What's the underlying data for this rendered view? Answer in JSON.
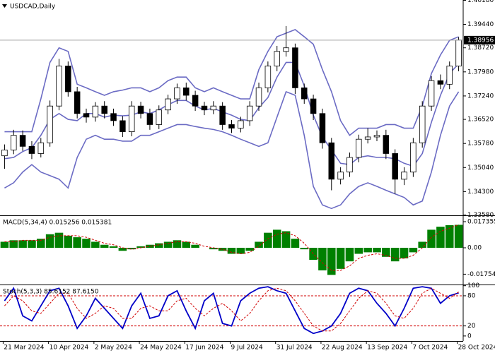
{
  "chart_data": [
    {
      "type": "candlestick",
      "title": "USDCAD,Daily",
      "categories": [
        "21 Mar 2024",
        null,
        null,
        null,
        null,
        "10 Apr 2024",
        null,
        null,
        null,
        null,
        "2 May 2024",
        null,
        null,
        null,
        null,
        "24 May 2024",
        null,
        null,
        null,
        null,
        "17 Jun 2024",
        null,
        null,
        null,
        null,
        "9 Jul 2024",
        null,
        null,
        null,
        null,
        "31 Jul 2024",
        null,
        null,
        null,
        null,
        "22 Aug 2024",
        null,
        null,
        null,
        null,
        "13 Sep 2024",
        null,
        null,
        null,
        null,
        "7 Oct 2024",
        null,
        null,
        null,
        null,
        "28 Oct 2024"
      ],
      "open": [
        1.354,
        1.3558,
        1.3603,
        1.3569,
        1.3547,
        1.358,
        1.3693,
        1.3816,
        1.3737,
        1.367,
        1.3659,
        1.3693,
        1.367,
        1.3648,
        1.3614,
        1.3693,
        1.367,
        1.3636,
        1.3681,
        1.3715,
        1.3749,
        1.3726,
        1.3693,
        1.3681,
        1.3693,
        1.3636,
        1.3625,
        1.3648,
        1.3693,
        1.3749,
        1.3816,
        1.3861,
        1.3872,
        1.3749,
        1.3715,
        1.367,
        1.358,
        1.3468,
        1.349,
        1.3535,
        1.3591,
        1.3598,
        1.3603,
        1.3547,
        1.3468,
        1.349,
        1.358,
        1.3693,
        1.3771,
        1.376,
        1.3816
      ],
      "high": [
        1.3575,
        1.362,
        1.3618,
        1.3585,
        1.3595,
        1.371,
        1.3838,
        1.383,
        1.3752,
        1.3685,
        1.3705,
        1.3708,
        1.3685,
        1.3662,
        1.3708,
        1.3706,
        1.3685,
        1.3695,
        1.3728,
        1.3762,
        1.3765,
        1.374,
        1.3706,
        1.3708,
        1.3705,
        1.365,
        1.366,
        1.3708,
        1.3765,
        1.383,
        1.3878,
        1.3939,
        1.3885,
        1.3762,
        1.3728,
        1.3685,
        1.3595,
        1.3505,
        1.355,
        1.3605,
        1.3625,
        1.3618,
        1.362,
        1.356,
        1.3505,
        1.3595,
        1.3708,
        1.3785,
        1.379,
        1.383,
        1.3905
      ],
      "low": [
        1.35,
        1.3545,
        1.3555,
        1.353,
        1.3535,
        1.3568,
        1.368,
        1.3722,
        1.3655,
        1.3642,
        1.3645,
        1.3655,
        1.3632,
        1.3598,
        1.36,
        1.3655,
        1.362,
        1.3622,
        1.3668,
        1.37,
        1.371,
        1.3678,
        1.3665,
        1.3668,
        1.362,
        1.361,
        1.3612,
        1.3632,
        1.3678,
        1.3735,
        1.38,
        1.3845,
        1.373,
        1.37,
        1.365,
        1.3562,
        1.3434,
        1.3452,
        1.3475,
        1.352,
        1.3578,
        1.3585,
        1.353,
        1.3423,
        1.345,
        1.3475,
        1.3565,
        1.3678,
        1.3745,
        1.3745,
        1.38
      ],
      "close": [
        1.3558,
        1.3603,
        1.3569,
        1.3547,
        1.358,
        1.3693,
        1.3816,
        1.3737,
        1.367,
        1.3659,
        1.3693,
        1.367,
        1.3648,
        1.3614,
        1.3693,
        1.367,
        1.3636,
        1.3681,
        1.3715,
        1.3749,
        1.3726,
        1.3693,
        1.3681,
        1.3693,
        1.3636,
        1.3625,
        1.3648,
        1.3693,
        1.3749,
        1.3816,
        1.3861,
        1.3872,
        1.3749,
        1.3715,
        1.367,
        1.358,
        1.3468,
        1.349,
        1.3535,
        1.3591,
        1.3598,
        1.3603,
        1.3547,
        1.3468,
        1.349,
        1.358,
        1.3693,
        1.3771,
        1.376,
        1.3816,
        1.3896
      ],
      "bands": {
        "color": "#6b6bc4",
        "upper": [
          1.3614,
          1.3614,
          1.3614,
          1.3614,
          1.3715,
          1.3827,
          1.3872,
          1.3861,
          1.376,
          1.3749,
          1.3737,
          1.3726,
          1.3737,
          1.3742,
          1.3749,
          1.3749,
          1.3737,
          1.3749,
          1.3771,
          1.3782,
          1.3782,
          1.3749,
          1.3737,
          1.3749,
          1.3737,
          1.3726,
          1.3715,
          1.3715,
          1.3805,
          1.3861,
          1.3906,
          1.3917,
          1.3928,
          1.3906,
          1.3883,
          1.3805,
          1.3737,
          1.3648,
          1.3603,
          1.3625,
          1.3625,
          1.3625,
          1.3636,
          1.3636,
          1.3625,
          1.3625,
          1.3693,
          1.3793,
          1.385,
          1.3895,
          1.3906
        ],
        "middle": [
          1.3531,
          1.3535,
          1.3553,
          1.3565,
          1.3603,
          1.3652,
          1.367,
          1.3652,
          1.3648,
          1.367,
          1.367,
          1.3659,
          1.3665,
          1.3663,
          1.3665,
          1.3675,
          1.367,
          1.3681,
          1.3697,
          1.371,
          1.371,
          1.3693,
          1.3681,
          1.3686,
          1.3675,
          1.3665,
          1.3652,
          1.3648,
          1.3688,
          1.3719,
          1.3782,
          1.3827,
          1.3827,
          1.3755,
          1.3665,
          1.3598,
          1.3558,
          1.3517,
          1.3513,
          1.3535,
          1.354,
          1.3535,
          1.3535,
          1.3531,
          1.3517,
          1.3508,
          1.3547,
          1.3643,
          1.3726,
          1.3793,
          1.3823
        ],
        "lower": [
          1.3441,
          1.3457,
          1.349,
          1.3513,
          1.349,
          1.3479,
          1.3468,
          1.3441,
          1.3535,
          1.3591,
          1.3603,
          1.3591,
          1.3591,
          1.3585,
          1.3585,
          1.3603,
          1.3603,
          1.3614,
          1.3625,
          1.3636,
          1.3636,
          1.363,
          1.3625,
          1.3621,
          1.3614,
          1.3603,
          1.3591,
          1.358,
          1.3569,
          1.358,
          1.3659,
          1.3737,
          1.3726,
          1.3603,
          1.3446,
          1.3389,
          1.3378,
          1.3389,
          1.3423,
          1.3446,
          1.3457,
          1.3446,
          1.3434,
          1.3423,
          1.3412,
          1.3389,
          1.3401,
          1.349,
          1.3603,
          1.3693,
          1.3737
        ]
      },
      "last_price": 1.38956,
      "ylim": [
        1.3357,
        1.4019
      ],
      "yticks": [
        {
          "value": 1.4018,
          "label": "1.40180"
        },
        {
          "value": 1.3944,
          "label": "1.39440"
        },
        {
          "value": 1.3872,
          "label": "1.38720"
        },
        {
          "value": 1.3798,
          "label": "1.37980"
        },
        {
          "value": 1.3724,
          "label": "1.37240"
        },
        {
          "value": 1.3652,
          "label": "1.36520"
        },
        {
          "value": 1.3578,
          "label": "1.35780"
        },
        {
          "value": 1.3504,
          "label": "1.35040"
        },
        {
          "value": 1.343,
          "label": "1.34300"
        },
        {
          "value": 1.3358,
          "label": "1.33580"
        }
      ]
    },
    {
      "type": "bar",
      "title": "MACD(5,34,4) 0.015256 0.015381",
      "series": [
        {
          "style": "bar",
          "color": "#008000",
          "values": [
            0.004,
            0.005,
            0.005,
            0.005,
            0.006,
            0.009,
            0.01,
            0.008,
            0.007,
            0.006,
            0.004,
            0.002,
            0.001,
            -0.002,
            -0.001,
            0.001,
            0.002,
            0.003,
            0.004,
            0.005,
            0.004,
            0.002,
            0.0,
            -0.001,
            -0.002,
            -0.004,
            -0.004,
            -0.002,
            0.004,
            0.01,
            0.012,
            0.011,
            0.006,
            -0.001,
            -0.008,
            -0.015,
            -0.018,
            -0.014,
            -0.009,
            -0.004,
            -0.003,
            -0.003,
            -0.006,
            -0.009,
            -0.007,
            -0.003,
            0.004,
            0.012,
            0.014,
            0.015,
            0.015256
          ]
        },
        {
          "style": "dashed",
          "color": "#d00000",
          "values": [
            0.004,
            0.004,
            0.005,
            0.005,
            0.005,
            0.007,
            0.008,
            0.008,
            0.008,
            0.007,
            0.005,
            0.003,
            0.002,
            0.0,
            -0.001,
            0.0,
            0.001,
            0.002,
            0.003,
            0.004,
            0.004,
            0.003,
            0.001,
            0.0,
            -0.001,
            -0.003,
            -0.004,
            -0.003,
            0.001,
            0.006,
            0.009,
            0.01,
            0.008,
            0.003,
            -0.004,
            -0.01,
            -0.015,
            -0.015,
            -0.012,
            -0.007,
            -0.005,
            -0.004,
            -0.005,
            -0.007,
            -0.007,
            -0.005,
            0.0,
            0.007,
            0.011,
            0.013,
            0.015381
          ]
        }
      ],
      "ylim": [
        -0.0244,
        0.0211
      ],
      "yticks": [
        0.017355,
        {
          "value": 0,
          "label": "0.00"
        },
        -0.017542
      ]
    },
    {
      "type": "line",
      "title": "Stoch(5,3,3) 85.6152 87.6150",
      "series": [
        {
          "style": "solid",
          "color": "#0000c8",
          "values": [
            70,
            95,
            40,
            30,
            60,
            90,
            95,
            60,
            15,
            40,
            75,
            55,
            35,
            15,
            60,
            85,
            35,
            40,
            80,
            90,
            50,
            15,
            70,
            85,
            25,
            20,
            70,
            85,
            95,
            98,
            90,
            85,
            50,
            15,
            5,
            10,
            20,
            45,
            85,
            95,
            90,
            65,
            45,
            20,
            55,
            95,
            98,
            95,
            65,
            80,
            85.6152
          ]
        },
        {
          "style": "dashed",
          "color": "#d00000",
          "values": [
            60,
            80,
            70,
            50,
            45,
            65,
            85,
            85,
            55,
            35,
            45,
            60,
            55,
            35,
            35,
            55,
            60,
            50,
            50,
            70,
            75,
            55,
            40,
            55,
            65,
            50,
            30,
            45,
            70,
            90,
            95,
            90,
            70,
            45,
            20,
            10,
            10,
            25,
            50,
            75,
            90,
            85,
            65,
            40,
            35,
            55,
            85,
            95,
            85,
            75,
            87.615
          ]
        }
      ],
      "levels": [
        80,
        20
      ],
      "ylim": [
        -10,
        101
      ],
      "yticks": [
        100,
        80,
        20,
        0
      ]
    }
  ]
}
